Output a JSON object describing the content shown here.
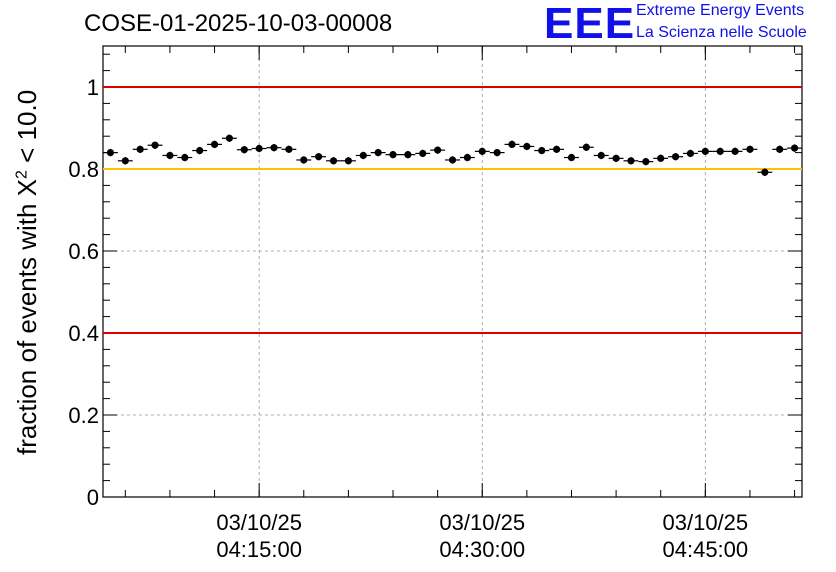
{
  "title": "COSE-01-2025-10-03-00008",
  "logo": {
    "mark": "EEE",
    "line1": "Extreme Energy Events",
    "line2": "La Scienza nelle Scuole"
  },
  "colors": {
    "limit_red": "#dd0000",
    "reference_yellow": "#ffc000",
    "points": "#000000",
    "logo_blue": "#1010e8"
  },
  "chart_data": {
    "type": "scatter",
    "title": "COSE-01-2025-10-03-00008",
    "xlabel": "",
    "ylabel_prefix": "fraction of events with ",
    "ylabel_symbol": "X",
    "ylabel_exponent": "2",
    "ylabel_suffix": " < 10.0",
    "x_unit": "minutes since 04:04:30",
    "xlim": [
      0,
      47
    ],
    "ylim": [
      0,
      1.1
    ],
    "grid": true,
    "yticks": [
      {
        "value": 0,
        "label": "0"
      },
      {
        "value": 0.2,
        "label": "0.2"
      },
      {
        "value": 0.4,
        "label": "0.4"
      },
      {
        "value": 0.6,
        "label": "0.6"
      },
      {
        "value": 0.8,
        "label": "0.8"
      },
      {
        "value": 1,
        "label": "1"
      }
    ],
    "xticks": [
      {
        "value": 10.5,
        "date": "03/10/25",
        "time": "04:15:00"
      },
      {
        "value": 25.5,
        "date": "03/10/25",
        "time": "04:30:00"
      },
      {
        "value": 40.5,
        "date": "03/10/25",
        "time": "04:45:00"
      }
    ],
    "reference_lines": [
      {
        "y": 1.0,
        "color": "#dd0000"
      },
      {
        "y": 0.8,
        "color": "#ffc000"
      },
      {
        "y": 0.4,
        "color": "#dd0000"
      }
    ],
    "series": [
      {
        "name": "fraction",
        "x": [
          0.5,
          1.5,
          2.5,
          3.5,
          4.5,
          5.5,
          6.5,
          7.5,
          8.5,
          9.5,
          10.5,
          11.5,
          12.5,
          13.5,
          14.5,
          15.5,
          16.5,
          17.5,
          18.5,
          19.5,
          20.5,
          21.5,
          22.5,
          23.5,
          24.5,
          25.5,
          26.5,
          27.5,
          28.5,
          29.5,
          30.5,
          31.5,
          32.5,
          33.5,
          34.5,
          35.5,
          36.5,
          37.5,
          38.5,
          39.5,
          40.5,
          41.5,
          42.5,
          43.5,
          44.5,
          45.5,
          46.5
        ],
        "y": [
          0.84,
          0.82,
          0.848,
          0.858,
          0.833,
          0.828,
          0.845,
          0.86,
          0.875,
          0.847,
          0.85,
          0.852,
          0.848,
          0.822,
          0.83,
          0.82,
          0.82,
          0.833,
          0.84,
          0.835,
          0.835,
          0.838,
          0.846,
          0.822,
          0.828,
          0.843,
          0.84,
          0.86,
          0.855,
          0.845,
          0.848,
          0.828,
          0.853,
          0.833,
          0.826,
          0.82,
          0.818,
          0.826,
          0.83,
          0.838,
          0.843,
          0.843,
          0.843,
          0.848,
          0.792,
          0.848,
          0.851
        ],
        "yerr": 0.009
      }
    ]
  }
}
